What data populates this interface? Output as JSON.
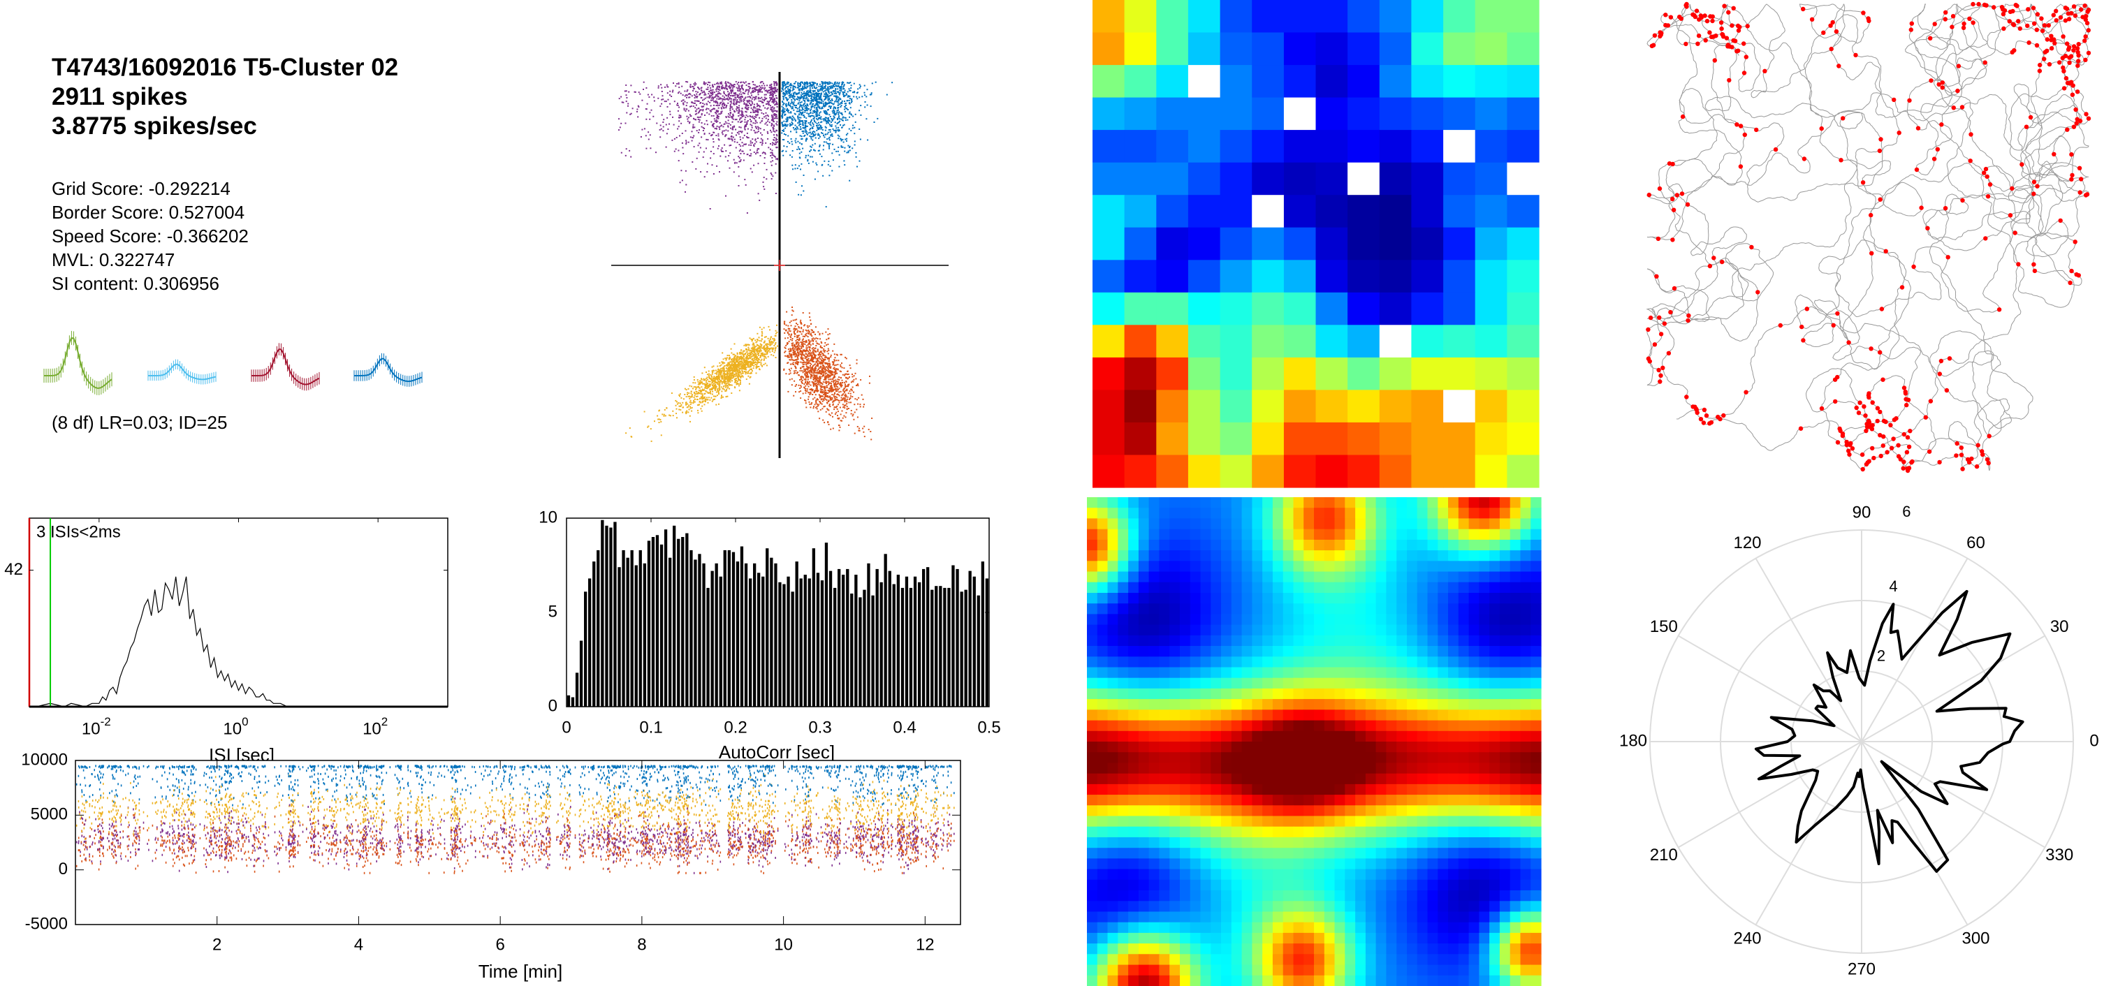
{
  "header": {
    "title": "T4743/16092016 T5-Cluster 02",
    "spikes": "2911 spikes",
    "rate": "3.8775 spikes/sec"
  },
  "stats": [
    "Grid Score: -0.292214",
    "Border Score: 0.527004",
    "Speed Score: -0.366202",
    "MVL: 0.322747",
    "SI content: 0.306956"
  ],
  "waveform_stats": "(8 df) LR=0.03; ID=25",
  "colors": {
    "blue": "#0072BD",
    "orange": "#D95319",
    "yellow": "#EDB120",
    "purple": "#7E2F8E",
    "green": "#77AC30",
    "cyan": "#4DBEEE",
    "red": "#A2142F",
    "spike_red": "#FF0000",
    "path_gray": "#999999",
    "isi_red": "#D00000",
    "isi_green": "#00CC00",
    "polar_grid": "#DDDDDD"
  },
  "waveforms": [
    {
      "channel": 1,
      "color": "#77AC30",
      "amp": 1.0
    },
    {
      "channel": 2,
      "color": "#4DBEEE",
      "amp": 0.3
    },
    {
      "channel": 3,
      "color": "#A2142F",
      "amp": 0.7
    },
    {
      "channel": 4,
      "color": "#0072BD",
      "amp": 0.45
    }
  ],
  "chart_data": [
    {
      "id": "cluster-projection",
      "type": "scatter",
      "quadrants": [
        {
          "name": "ch1-vs-ch2",
          "color": "#7E2F8E"
        },
        {
          "name": "ch1-vs-ch3",
          "color": "#0072BD"
        },
        {
          "name": "ch2-vs-ch3",
          "color": "#EDB120"
        },
        {
          "name": "ch2-vs-ch4",
          "color": "#D95319"
        }
      ]
    },
    {
      "id": "isi-histogram",
      "type": "line",
      "xscale": "log",
      "xlim_log10": [
        -3,
        3
      ],
      "ylim": [
        0,
        58
      ],
      "yticks": [
        42
      ],
      "xticks": [
        {
          "base": "10",
          "exp": "-2",
          "log10": -2
        },
        {
          "base": "10",
          "exp": "0",
          "log10": 0
        },
        {
          "base": "10",
          "exp": "2",
          "log10": 2
        }
      ],
      "xlabel": "ISI [sec]",
      "annotation": "3 ISIs<2ms",
      "refractory_sec": 0.002,
      "log10_x": [
        -2.9,
        -2.7,
        -2.5,
        -2.4,
        -2.2,
        -2.1,
        -2.0,
        -1.95,
        -1.9,
        -1.85,
        -1.8,
        -1.75,
        -1.7,
        -1.65,
        -1.6,
        -1.55,
        -1.5,
        -1.45,
        -1.4,
        -1.35,
        -1.3,
        -1.25,
        -1.2,
        -1.15,
        -1.1,
        -1.05,
        -1.0,
        -0.95,
        -0.9,
        -0.85,
        -0.8,
        -0.75,
        -0.7,
        -0.65,
        -0.6,
        -0.55,
        -0.5,
        -0.45,
        -0.4,
        -0.35,
        -0.3,
        -0.25,
        -0.2,
        -0.15,
        -0.1,
        -0.05,
        0.0,
        0.05,
        0.1,
        0.15,
        0.2,
        0.25,
        0.3,
        0.35,
        0.4,
        0.45,
        0.5,
        0.6,
        0.7,
        0.8
      ],
      "counts": [
        0,
        1,
        0,
        1,
        0,
        1,
        1,
        3,
        2,
        5,
        6,
        4,
        9,
        12,
        14,
        18,
        20,
        24,
        27,
        31,
        33,
        28,
        36,
        29,
        30,
        38,
        36,
        33,
        40,
        31,
        35,
        40,
        27,
        30,
        22,
        24,
        17,
        19,
        12,
        15,
        9,
        11,
        8,
        10,
        6,
        8,
        5,
        7,
        4,
        6,
        5,
        3,
        3,
        4,
        2,
        2,
        1,
        1,
        0,
        0
      ]
    },
    {
      "id": "spike-autocorrelogram",
      "type": "bar",
      "xlim": [
        0,
        0.5
      ],
      "ylim": [
        0,
        10
      ],
      "bin_width": 0.005,
      "xticks": [
        0,
        0.1,
        0.2,
        0.3,
        0.4,
        0.5
      ],
      "yticks": [
        0,
        5,
        10
      ],
      "xlabel": "AutoCorr [sec]",
      "values": [
        0.6,
        0.5,
        1.8,
        3.5,
        6.1,
        6.8,
        7.7,
        8.3,
        9.9,
        9.6,
        9.5,
        9.8,
        7.4,
        8.3,
        7.9,
        8.3,
        7.5,
        8.3,
        7.6,
        8.8,
        9.0,
        9.1,
        8.6,
        9.4,
        7.9,
        9.6,
        8.9,
        9.0,
        9.2,
        8.3,
        7.8,
        8.1,
        7.6,
        6.3,
        7.2,
        7.6,
        6.9,
        8.3,
        8.3,
        8.2,
        7.7,
        8.5,
        7.6,
        6.8,
        7.6,
        7.1,
        6.9,
        8.4,
        7.9,
        7.6,
        6.6,
        6.5,
        6.9,
        6.1,
        7.7,
        6.8,
        7.0,
        6.8,
        8.4,
        7.1,
        6.7,
        8.7,
        7.2,
        6.3,
        7.3,
        7.0,
        7.3,
        6.0,
        7.0,
        5.8,
        6.2,
        7.6,
        5.9,
        7.3,
        6.6,
        8.1,
        7.2,
        6.5,
        7.0,
        6.3,
        6.9,
        6.3,
        6.9,
        6.6,
        7.3,
        7.4,
        6.2,
        6.4,
        6.4,
        6.3,
        6.3,
        7.5,
        7.3,
        6.1,
        6.2,
        7.2,
        6.9,
        5.9,
        7.7,
        6.8
      ]
    },
    {
      "id": "amplitude-vs-time",
      "type": "scatter",
      "xlim": [
        0,
        12.5
      ],
      "ylim": [
        -5000,
        10000
      ],
      "xticks": [
        2,
        4,
        6,
        8,
        10,
        12
      ],
      "yticks": [
        10000,
        5000,
        0,
        -5000
      ],
      "xlabel": "Time [min]",
      "series": [
        {
          "name": "ch1",
          "color": "#0072BD",
          "range": [
            6000,
            9600
          ]
        },
        {
          "name": "ch2",
          "color": "#EDB120",
          "range": [
            3500,
            7500
          ]
        },
        {
          "name": "ch3",
          "color": "#7E2F8E",
          "range": [
            800,
            5000
          ]
        },
        {
          "name": "ch4",
          "color": "#D95319",
          "range": [
            300,
            4500
          ]
        }
      ]
    },
    {
      "id": "rate-map",
      "type": "heatmap",
      "colormap": "jet",
      "grid": [
        [
          0.7,
          0.6,
          0.45,
          0.35,
          0.2,
          0.15,
          0.15,
          0.15,
          0.2,
          0.25,
          0.35,
          0.45,
          0.5,
          0.5
        ],
        [
          0.72,
          0.62,
          0.45,
          0.32,
          0.22,
          0.2,
          0.12,
          0.1,
          0.15,
          0.22,
          0.4,
          0.5,
          0.52,
          0.48
        ],
        [
          0.5,
          0.45,
          0.35,
          null,
          0.25,
          0.2,
          0.15,
          0.08,
          0.12,
          0.25,
          0.35,
          0.38,
          0.36,
          0.35
        ],
        [
          0.3,
          0.28,
          0.25,
          0.25,
          0.25,
          0.22,
          null,
          0.12,
          0.15,
          0.18,
          0.2,
          0.22,
          0.25,
          0.22
        ],
        [
          0.2,
          0.2,
          0.22,
          0.25,
          0.2,
          0.15,
          0.1,
          0.1,
          0.12,
          0.1,
          0.15,
          null,
          0.2,
          0.18
        ],
        [
          0.25,
          0.25,
          0.25,
          0.2,
          0.15,
          0.08,
          0.06,
          0.07,
          null,
          0.05,
          0.08,
          0.2,
          0.22,
          null
        ],
        [
          0.35,
          0.3,
          0.2,
          0.15,
          0.15,
          null,
          0.08,
          0.05,
          0.03,
          0.02,
          0.08,
          0.22,
          0.25,
          0.22
        ],
        [
          0.35,
          0.22,
          0.1,
          0.12,
          0.2,
          0.25,
          0.2,
          0.08,
          0.03,
          0.02,
          0.05,
          0.15,
          0.3,
          0.35
        ],
        [
          0.22,
          0.15,
          0.12,
          0.2,
          0.28,
          0.35,
          0.3,
          0.1,
          0.05,
          0.04,
          0.08,
          0.2,
          0.35,
          0.4
        ],
        [
          0.38,
          0.45,
          0.45,
          0.38,
          0.4,
          0.45,
          0.42,
          0.25,
          0.12,
          0.08,
          0.15,
          0.2,
          0.35,
          0.42
        ],
        [
          0.65,
          0.8,
          0.68,
          0.45,
          0.42,
          0.5,
          0.48,
          0.35,
          0.3,
          null,
          0.4,
          0.42,
          0.4,
          0.45
        ],
        [
          0.88,
          0.95,
          0.82,
          0.5,
          0.42,
          0.55,
          0.65,
          0.55,
          0.48,
          0.55,
          0.6,
          0.6,
          0.58,
          0.55
        ],
        [
          0.9,
          0.98,
          0.75,
          0.55,
          0.45,
          0.6,
          0.72,
          0.68,
          0.65,
          0.7,
          0.72,
          null,
          0.68,
          0.6
        ],
        [
          0.9,
          0.95,
          0.72,
          0.55,
          0.5,
          0.65,
          0.8,
          0.8,
          0.78,
          0.75,
          0.72,
          0.72,
          0.65,
          0.62
        ],
        [
          0.88,
          0.85,
          0.78,
          0.65,
          0.58,
          0.72,
          0.85,
          0.88,
          0.85,
          0.78,
          0.72,
          0.72,
          0.62,
          0.55
        ]
      ]
    },
    {
      "id": "spatial-autocorrelogram",
      "type": "heatmap",
      "colormap": "jet",
      "base": 0.25,
      "band": {
        "lag_y": -0.08,
        "amp": 0.68,
        "sigma": 0.2
      },
      "peaks": [
        {
          "lag_x": -0.05,
          "lag_y": -0.08,
          "amp": 0.25,
          "sigma": 0.18
        },
        {
          "lag_x": -1.0,
          "lag_y": -0.08,
          "amp": 0.12,
          "sigma": 0.2
        },
        {
          "lag_x": 1.0,
          "lag_y": -0.1,
          "amp": 0.1,
          "sigma": 0.2
        },
        {
          "lag_x": 0.05,
          "lag_y": 0.92,
          "amp": 0.55,
          "sigma": 0.16
        },
        {
          "lag_x": 0.75,
          "lag_y": 1.0,
          "amp": 0.7,
          "sigma": 0.16
        },
        {
          "lag_x": -1.0,
          "lag_y": 0.8,
          "amp": 0.65,
          "sigma": 0.14
        },
        {
          "lag_x": -0.05,
          "lag_y": -0.9,
          "amp": 0.55,
          "sigma": 0.15
        },
        {
          "lag_x": -0.75,
          "lag_y": -1.0,
          "amp": 0.75,
          "sigma": 0.16
        },
        {
          "lag_x": 0.95,
          "lag_y": -0.85,
          "amp": 0.65,
          "sigma": 0.12
        },
        {
          "lag_x": 0.2,
          "lag_y": 0.45,
          "amp": 0.12,
          "sigma": 0.3
        },
        {
          "lag_x": -0.3,
          "lag_y": -0.55,
          "amp": 0.12,
          "sigma": 0.3
        },
        {
          "lag_x": -0.75,
          "lag_y": 0.5,
          "amp": -0.22,
          "sigma": 0.25
        },
        {
          "lag_x": 0.85,
          "lag_y": 0.5,
          "amp": -0.22,
          "sigma": 0.25
        },
        {
          "lag_x": -0.8,
          "lag_y": -0.6,
          "amp": -0.22,
          "sigma": 0.25
        },
        {
          "lag_x": 0.75,
          "lag_y": -0.6,
          "amp": -0.22,
          "sigma": 0.25
        }
      ]
    },
    {
      "id": "trajectory-with-spikes",
      "type": "scatter",
      "path_color": "#999999",
      "spike_color": "#FF0000"
    },
    {
      "id": "head-direction-polar",
      "type": "line",
      "rlim": [
        0,
        6
      ],
      "r_ticks": [
        2,
        4,
        6
      ],
      "angle_ticks": [
        0,
        30,
        60,
        90,
        120,
        150,
        180,
        210,
        240,
        270,
        300,
        330
      ],
      "points": [
        [
          0,
          4.2
        ],
        [
          4,
          4.35
        ],
        [
          7,
          4.6
        ],
        [
          10,
          4.1
        ],
        [
          13,
          4.2
        ],
        [
          17,
          3.2
        ],
        [
          22,
          2.3
        ],
        [
          27,
          3.8
        ],
        [
          31,
          4.6
        ],
        [
          36,
          5.2
        ],
        [
          42,
          4.2
        ],
        [
          48,
          3.3
        ],
        [
          52,
          4.4
        ],
        [
          55,
          5.2
        ],
        [
          58,
          4.3
        ],
        [
          64,
          2.6
        ],
        [
          69,
          3.0
        ],
        [
          72,
          3.3
        ],
        [
          75,
          3.2
        ],
        [
          77,
          4.0
        ],
        [
          80,
          3.4
        ],
        [
          84,
          2.3
        ],
        [
          87,
          1.6
        ],
        [
          92,
          1.8
        ],
        [
          97,
          2.6
        ],
        [
          102,
          2.0
        ],
        [
          108,
          2.2
        ],
        [
          111,
          2.7
        ],
        [
          114,
          2.0
        ],
        [
          117,
          1.3
        ],
        [
          122,
          1.7
        ],
        [
          127,
          1.8
        ],
        [
          130,
          2.1
        ],
        [
          136,
          1.4
        ],
        [
          141,
          1.6
        ],
        [
          144,
          1.6
        ],
        [
          150,
          0.9
        ],
        [
          157,
          1.5
        ],
        [
          165,
          2.65
        ],
        [
          170,
          2.0
        ],
        [
          175,
          1.9
        ],
        [
          180,
          2.1
        ],
        [
          184,
          3.0
        ],
        [
          188,
          2.8
        ],
        [
          193,
          1.8
        ],
        [
          197,
          2.4
        ],
        [
          200,
          3.1
        ],
        [
          205,
          2.2
        ],
        [
          210,
          1.6
        ],
        [
          214,
          1.5
        ],
        [
          220,
          1.7
        ],
        [
          229,
          2.6
        ],
        [
          233,
          3.0
        ],
        [
          237,
          3.4
        ],
        [
          241,
          2.7
        ],
        [
          249,
          2.0
        ],
        [
          255,
          1.6
        ],
        [
          260,
          1.3
        ],
        [
          263,
          0.9
        ],
        [
          266,
          1.0
        ],
        [
          268,
          0.8
        ],
        [
          272,
          1.3
        ],
        [
          278,
          3.5
        ],
        [
          281,
          2.6
        ],
        [
          283,
          2.0
        ],
        [
          287,
          3.0
        ],
        [
          291,
          2.4
        ],
        [
          294,
          2.5
        ],
        [
          297,
          3.2
        ],
        [
          300,
          4.25
        ],
        [
          306,
          4.15
        ],
        [
          310,
          2.5
        ],
        [
          315,
          0.8
        ],
        [
          320,
          2.2
        ],
        [
          324,
          3.0
        ],
        [
          330,
          2.4
        ],
        [
          333,
          2.5
        ],
        [
          339,
          3.8
        ],
        [
          343,
          3.0
        ],
        [
          346,
          2.9
        ],
        [
          350,
          3.4
        ],
        [
          355,
          3.6
        ],
        [
          359,
          4.0
        ]
      ]
    }
  ]
}
